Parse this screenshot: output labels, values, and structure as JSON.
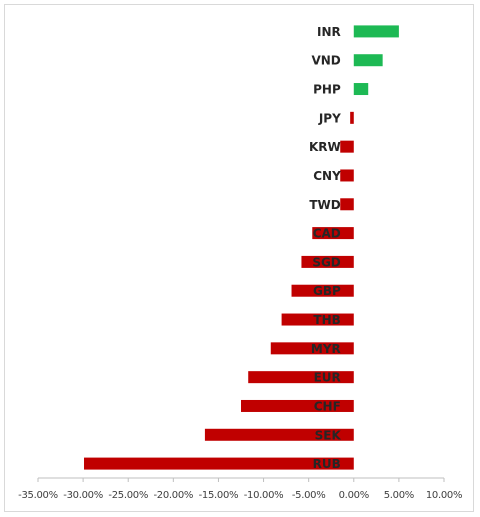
{
  "chart_data": {
    "type": "bar",
    "orientation": "horizontal",
    "categories": [
      "INR",
      "VND",
      "PHP",
      "JPY",
      "KRW",
      "CNY",
      "TWD",
      "CAD",
      "SGD",
      "GBP",
      "THB",
      "MYR",
      "EUR",
      "CHF",
      "SEK",
      "RUB"
    ],
    "values": [
      5.0,
      3.2,
      1.6,
      -0.4,
      -1.5,
      -1.5,
      -1.5,
      -4.6,
      -5.8,
      -6.9,
      -8.0,
      -9.2,
      -11.7,
      -12.5,
      -16.5,
      -29.9
    ],
    "xlim": [
      -35,
      10
    ],
    "x_ticks": [
      "-35.00%",
      "-30.00%",
      "-25.00%",
      "-20.00%",
      "-15.00%",
      "-10.00%",
      "-5.00%",
      "0.00%",
      "5.00%",
      "10.00%"
    ],
    "x_tick_values": [
      -35,
      -30,
      -25,
      -20,
      -15,
      -10,
      -5,
      0,
      5,
      10
    ],
    "title": "",
    "xlabel": "",
    "ylabel": "",
    "grid": false,
    "legend": "none",
    "colors": {
      "positive": "#1db954",
      "negative": "#c00000",
      "label": "#262626",
      "tick": "#404040",
      "axis": "#bfbfbf"
    }
  }
}
